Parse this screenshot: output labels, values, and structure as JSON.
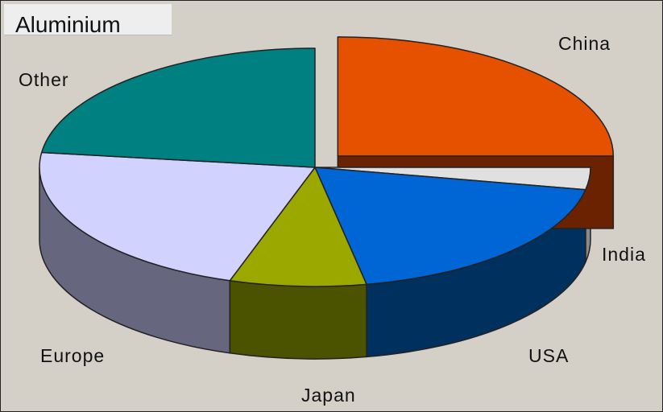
{
  "chart_data": {
    "type": "pie",
    "title": "Aluminium",
    "three_d": true,
    "exploded_slice": "China",
    "categories": [
      "China",
      "India",
      "USA",
      "Japan",
      "Europe",
      "Other"
    ],
    "values": [
      25,
      3,
      19,
      8,
      22,
      23
    ],
    "legend": "none",
    "colors": {
      "China": "#e65100",
      "India": "#e0e0e0",
      "USA": "#0066d6",
      "Japan": "#9aa800",
      "Europe": "#d2d2ff",
      "Other": "#008080"
    },
    "side_colors": {
      "China": "#6b2200",
      "India": "#8a8a8a",
      "USA": "#00305e",
      "Japan": "#4b5200",
      "Europe": "#66667f",
      "Other": "#004a4a"
    },
    "background": "#d4d0c8"
  }
}
